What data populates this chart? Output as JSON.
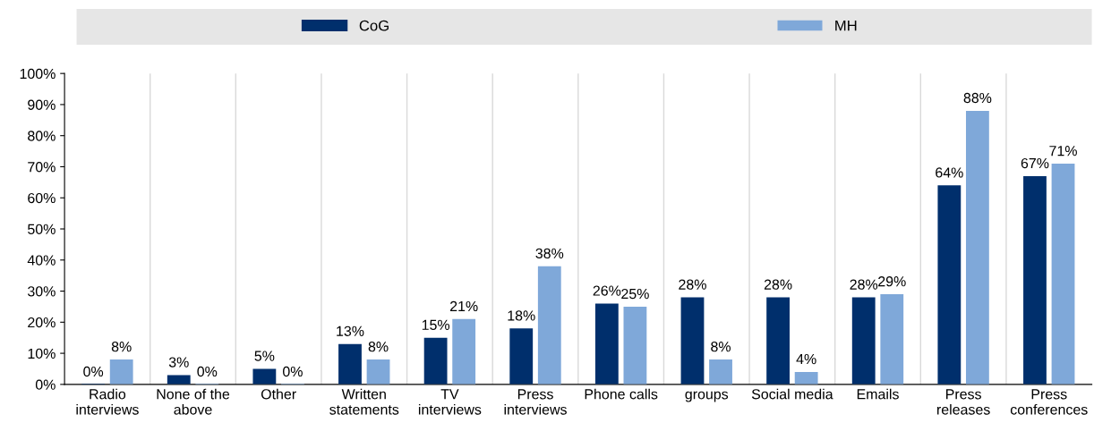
{
  "chart_data": {
    "type": "bar",
    "categories": [
      "Radio interviews",
      "None of the above",
      "Other",
      "Written statements",
      "TV interviews",
      "Press interviews",
      "Phone calls",
      "groups",
      "Social media",
      "Emails",
      "Press releases",
      "Press conferences"
    ],
    "series": [
      {
        "name": "CoG",
        "color": "#002f6c",
        "values": [
          0,
          3,
          5,
          13,
          15,
          18,
          26,
          28,
          28,
          28,
          64,
          67
        ],
        "value_labels": [
          "0%",
          "3%",
          "5%",
          "13%",
          "15%",
          "18%",
          "26%",
          "28%",
          "28%",
          "28%",
          "64%",
          "67%"
        ]
      },
      {
        "name": "MH",
        "color": "#7fa8d9",
        "values": [
          8,
          0,
          0,
          8,
          21,
          38,
          25,
          8,
          4,
          29,
          88,
          71
        ],
        "value_labels": [
          "8%",
          "0%",
          "0%",
          "8%",
          "21%",
          "38%",
          "25%",
          "8%",
          "4%",
          "29%",
          "88%",
          "71%"
        ]
      }
    ],
    "ylim": [
      0,
      100
    ],
    "yticks": [
      {
        "value": 0,
        "label": "0%"
      },
      {
        "value": 10,
        "label": "10%"
      },
      {
        "value": 20,
        "label": "20%"
      },
      {
        "value": 30,
        "label": "30%"
      },
      {
        "value": 40,
        "label": "40%"
      },
      {
        "value": 50,
        "label": "50%"
      },
      {
        "value": 60,
        "label": "60%"
      },
      {
        "value": 70,
        "label": "70%"
      },
      {
        "value": 80,
        "label": "80%"
      },
      {
        "value": 90,
        "label": "90%"
      },
      {
        "value": 100,
        "label": "100%"
      }
    ],
    "grid": "x",
    "legend": "top"
  }
}
